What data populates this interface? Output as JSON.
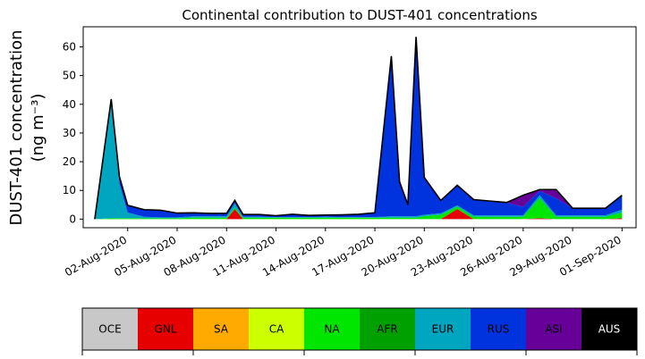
{
  "chart_data": {
    "type": "area",
    "title": "Continental contribution to DUST-401 concentrations",
    "ylabel_line1": "DUST-401 concentration",
    "ylabel_line2": "(ng m⁻³)",
    "ylim": [
      -3,
      67
    ],
    "yticks": [
      0,
      10,
      20,
      30,
      40,
      50,
      60
    ],
    "xtick_labels": [
      "02-Aug-2020",
      "05-Aug-2020",
      "08-Aug-2020",
      "11-Aug-2020",
      "14-Aug-2020",
      "17-Aug-2020",
      "20-Aug-2020",
      "23-Aug-2020",
      "26-Aug-2020",
      "29-Aug-2020",
      "01-Sep-2020"
    ],
    "x": [
      "31-Jul-2020",
      "01-Aug-2020",
      "01-Aug-2020 12h",
      "02-Aug-2020",
      "03-Aug-2020",
      "04-Aug-2020",
      "05-Aug-2020",
      "06-Aug-2020",
      "07-Aug-2020",
      "08-Aug-2020",
      "08-Aug-2020 12h",
      "09-Aug-2020",
      "10-Aug-2020",
      "11-Aug-2020",
      "12-Aug-2020",
      "13-Aug-2020",
      "14-Aug-2020",
      "15-Aug-2020",
      "16-Aug-2020",
      "17-Aug-2020",
      "18-Aug-2020",
      "18-Aug-2020 12h",
      "19-Aug-2020",
      "19-Aug-2020 12h",
      "20-Aug-2020",
      "21-Aug-2020",
      "22-Aug-2020",
      "23-Aug-2020",
      "24-Aug-2020",
      "25-Aug-2020",
      "26-Aug-2020",
      "27-Aug-2020",
      "28-Aug-2020",
      "29-Aug-2020",
      "30-Aug-2020",
      "31-Aug-2020",
      "01-Sep-2020"
    ],
    "series": [
      {
        "name": "OCE",
        "color": "#c8c8c8",
        "values": [
          0,
          0,
          0,
          0,
          0,
          0,
          0,
          0,
          0,
          0,
          0,
          0,
          0,
          0,
          0,
          0,
          0,
          0,
          0,
          0,
          0,
          0,
          0,
          0,
          0,
          0,
          0,
          0,
          0,
          0,
          0,
          0,
          0,
          0,
          0,
          0,
          0
        ]
      },
      {
        "name": "GNL",
        "color": "#e60000",
        "values": [
          0,
          0,
          0,
          0,
          0,
          0,
          0,
          0,
          0,
          0,
          3.5,
          0,
          0,
          0,
          0,
          0,
          0,
          0,
          0,
          0,
          0,
          0,
          0,
          0,
          0,
          0,
          3.5,
          0,
          0,
          0,
          0,
          0.3,
          0,
          0,
          0,
          0,
          0.3
        ]
      },
      {
        "name": "SA",
        "color": "#ffaa00",
        "values": [
          0,
          0,
          0,
          0,
          0,
          0,
          0,
          0,
          0,
          0,
          0,
          0,
          0,
          0,
          0,
          0,
          0,
          0,
          0,
          0,
          0,
          0,
          0,
          0,
          0,
          0,
          0,
          0,
          0,
          0,
          0,
          0,
          0,
          0,
          0,
          0,
          0
        ]
      },
      {
        "name": "CA",
        "color": "#ccff00",
        "values": [
          0,
          0,
          0,
          0,
          0,
          0,
          0,
          0,
          0,
          0,
          0,
          0,
          0,
          0,
          0,
          0,
          0,
          0,
          0,
          0,
          0,
          0,
          0,
          0,
          0,
          0,
          0,
          0,
          0,
          0,
          0,
          0,
          0,
          0,
          0,
          0,
          0
        ]
      },
      {
        "name": "NA",
        "color": "#00e600",
        "values": [
          0,
          0.3,
          0.3,
          0.3,
          0.3,
          0.3,
          0.3,
          0.5,
          0.5,
          0.5,
          0.5,
          0.5,
          0.5,
          0.5,
          0.5,
          0.5,
          0.5,
          0.5,
          0.5,
          0.5,
          0.5,
          0.5,
          0.5,
          0.5,
          1.0,
          1.5,
          0.8,
          0.8,
          0.8,
          0.8,
          0.8,
          7.0,
          0.8,
          0.8,
          0.8,
          0.8,
          2.0
        ]
      },
      {
        "name": "AFR",
        "color": "#00a000",
        "values": [
          0,
          0,
          0,
          0,
          0,
          0,
          0,
          0,
          0,
          0,
          0,
          0,
          0,
          0,
          0,
          0,
          0,
          0,
          0,
          0,
          0,
          0,
          0,
          0,
          0,
          0,
          0,
          0,
          0,
          0,
          0,
          0,
          0,
          0,
          0,
          0,
          0
        ]
      },
      {
        "name": "EUR",
        "color": "#00a5bf",
        "values": [
          0,
          40,
          12,
          2,
          0.5,
          0.3,
          0.3,
          0.5,
          0.5,
          0.5,
          1.5,
          0.3,
          0.3,
          0.2,
          0.2,
          0.2,
          0.3,
          0.2,
          0.2,
          0.2,
          0.5,
          0.5,
          0.5,
          0.5,
          0.5,
          0.5,
          0.5,
          0.5,
          0.5,
          0.5,
          0.5,
          1.0,
          0.5,
          0.5,
          0.5,
          0.5,
          1.0
        ]
      },
      {
        "name": "RUS",
        "color": "#0033dd",
        "values": [
          0,
          1.5,
          2.5,
          2.5,
          2.5,
          2.5,
          1.5,
          1.2,
          1.0,
          1.0,
          1.0,
          0.8,
          0.8,
          0.5,
          1.0,
          0.6,
          0.6,
          0.8,
          1.0,
          1.5,
          55.8,
          12.0,
          4.0,
          62.5,
          13.0,
          4.5,
          7.0,
          5.5,
          5.0,
          4.5,
          3.0,
          1.5,
          6.0,
          2.5,
          2.5,
          2.5,
          5.0
        ]
      },
      {
        "name": "ASI",
        "color": "#660099",
        "values": [
          0,
          0,
          0,
          0,
          0,
          0,
          0,
          0,
          0,
          0,
          0,
          0,
          0,
          0,
          0,
          0,
          0,
          0,
          0,
          0,
          0,
          0,
          0,
          0,
          0,
          0,
          0,
          0,
          0,
          0,
          4.0,
          0.5,
          3.0,
          0,
          0,
          0,
          0
        ]
      },
      {
        "name": "AUS",
        "color": "#000000",
        "values": [
          0,
          0,
          0,
          0,
          0,
          0,
          0,
          0,
          0,
          0,
          0,
          0,
          0,
          0,
          0,
          0,
          0,
          0,
          0,
          0,
          0,
          0,
          0,
          0,
          0,
          0,
          0,
          0,
          0,
          0,
          0,
          0,
          0,
          0,
          0,
          0,
          0
        ]
      }
    ],
    "colorbar": [
      {
        "label": "OCE",
        "color": "#c8c8c8",
        "text_color": "#000000"
      },
      {
        "label": "GNL",
        "color": "#e60000",
        "text_color": "#000000"
      },
      {
        "label": "SA",
        "color": "#ffaa00",
        "text_color": "#000000"
      },
      {
        "label": "CA",
        "color": "#ccff00",
        "text_color": "#000000"
      },
      {
        "label": "NA",
        "color": "#00e600",
        "text_color": "#000000"
      },
      {
        "label": "AFR",
        "color": "#00a000",
        "text_color": "#000000"
      },
      {
        "label": "EUR",
        "color": "#00a5bf",
        "text_color": "#000000"
      },
      {
        "label": "RUS",
        "color": "#0033dd",
        "text_color": "#000000"
      },
      {
        "label": "ASI",
        "color": "#660099",
        "text_color": "#000000"
      },
      {
        "label": "AUS",
        "color": "#000000",
        "text_color": "#ffffff"
      }
    ],
    "grid": false,
    "legend": "colorbar below plot"
  }
}
